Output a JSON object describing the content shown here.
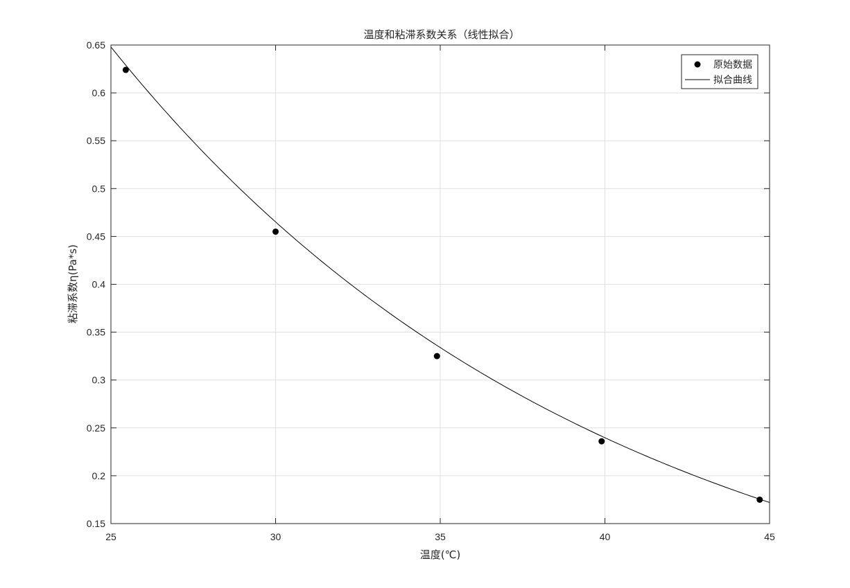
{
  "chart_data": {
    "type": "scatter",
    "title": "温度和粘滞系数关系（线性拟合）",
    "xlabel": "温度(℃)",
    "ylabel": "粘滞系数η(Pa*s)",
    "xlim": [
      25,
      45
    ],
    "ylim": [
      0.15,
      0.65
    ],
    "xticks": [
      25,
      30,
      35,
      40,
      45
    ],
    "xtick_labels": [
      "25",
      "30",
      "35",
      "40",
      "45"
    ],
    "yticks": [
      0.15,
      0.2,
      0.25,
      0.3,
      0.35,
      0.4,
      0.45,
      0.5,
      0.55,
      0.6,
      0.65
    ],
    "ytick_labels": [
      "0.15",
      "0.2",
      "0.25",
      "0.3",
      "0.35",
      "0.4",
      "0.45",
      "0.5",
      "0.55",
      "0.6",
      "0.65"
    ],
    "grid": true,
    "legend_position": "top-right",
    "series": [
      {
        "name": "原始数据",
        "kind": "markers",
        "color": "#000000",
        "x": [
          25.45,
          30.0,
          34.9,
          39.9,
          44.7
        ],
        "y": [
          0.624,
          0.455,
          0.325,
          0.236,
          0.175
        ]
      },
      {
        "name": "拟合曲线",
        "kind": "line",
        "color": "#000000",
        "model": "exponential",
        "a": 0.648,
        "b": -0.0663,
        "x_origin": 25
      }
    ]
  }
}
